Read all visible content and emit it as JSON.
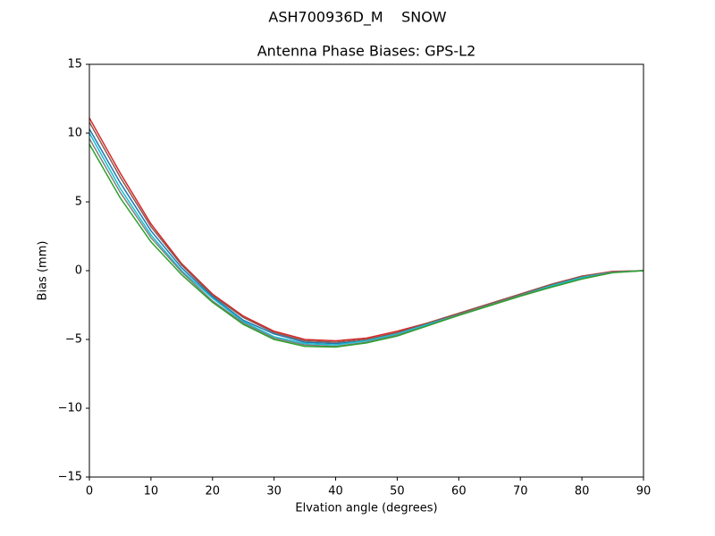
{
  "chart_data": {
    "type": "line",
    "suptitle": "ASH700936D_M    SNOW",
    "title": "Antenna Phase Biases: GPS-L2",
    "xlabel": "Elvation angle (degrees)",
    "ylabel": "Bias (mm)",
    "x": [
      0,
      5,
      10,
      15,
      20,
      25,
      30,
      35,
      40,
      45,
      50,
      55,
      60,
      65,
      70,
      75,
      80,
      85,
      90
    ],
    "series": [
      {
        "color": "#d62728",
        "values": [
          11.1,
          7.1,
          3.4,
          0.5,
          -1.7,
          -3.3,
          -4.4,
          -5.0,
          -5.1,
          -4.9,
          -4.4,
          -3.8,
          -3.1,
          -2.4,
          -1.7,
          -1.0,
          -0.4,
          -0.05,
          0
        ]
      },
      {
        "color": "#8c564b",
        "values": [
          10.8,
          6.8,
          3.2,
          0.4,
          -1.8,
          -3.4,
          -4.5,
          -5.1,
          -5.2,
          -5.0,
          -4.5,
          -3.8,
          -3.1,
          -2.4,
          -1.7,
          -1.0,
          -0.4,
          -0.1,
          0
        ]
      },
      {
        "color": "#1f77b4",
        "values": [
          10.3,
          6.4,
          2.9,
          0.2,
          -1.9,
          -3.6,
          -4.6,
          -5.2,
          -5.3,
          -5.1,
          -4.6,
          -3.9,
          -3.2,
          -2.5,
          -1.8,
          -1.1,
          -0.5,
          -0.1,
          0
        ]
      },
      {
        "color": "#17becf",
        "values": [
          10.0,
          6.0,
          2.6,
          0.0,
          -2.0,
          -3.7,
          -4.8,
          -5.3,
          -5.4,
          -5.1,
          -4.6,
          -3.9,
          -3.2,
          -2.5,
          -1.8,
          -1.1,
          -0.5,
          -0.1,
          0
        ]
      },
      {
        "color": "#7f7f7f",
        "values": [
          9.6,
          5.7,
          2.4,
          -0.1,
          -2.2,
          -3.8,
          -4.9,
          -5.4,
          -5.5,
          -5.2,
          -4.7,
          -4.0,
          -3.2,
          -2.5,
          -1.8,
          -1.2,
          -0.6,
          -0.1,
          0
        ]
      },
      {
        "color": "#2ca02c",
        "values": [
          9.2,
          5.3,
          2.1,
          -0.3,
          -2.3,
          -3.9,
          -5.0,
          -5.5,
          -5.55,
          -5.25,
          -4.75,
          -4.0,
          -3.25,
          -2.55,
          -1.85,
          -1.2,
          -0.6,
          -0.15,
          0
        ]
      }
    ],
    "xlim": [
      0,
      90
    ],
    "ylim": [
      -15,
      15
    ],
    "xticks": [
      0,
      10,
      20,
      30,
      40,
      50,
      60,
      70,
      80,
      90
    ],
    "yticks": [
      {
        "value": -15,
        "label": "−15"
      },
      {
        "value": -10,
        "label": "−10"
      },
      {
        "value": -5,
        "label": "−5"
      },
      0,
      5,
      10,
      15
    ],
    "grid": false
  }
}
